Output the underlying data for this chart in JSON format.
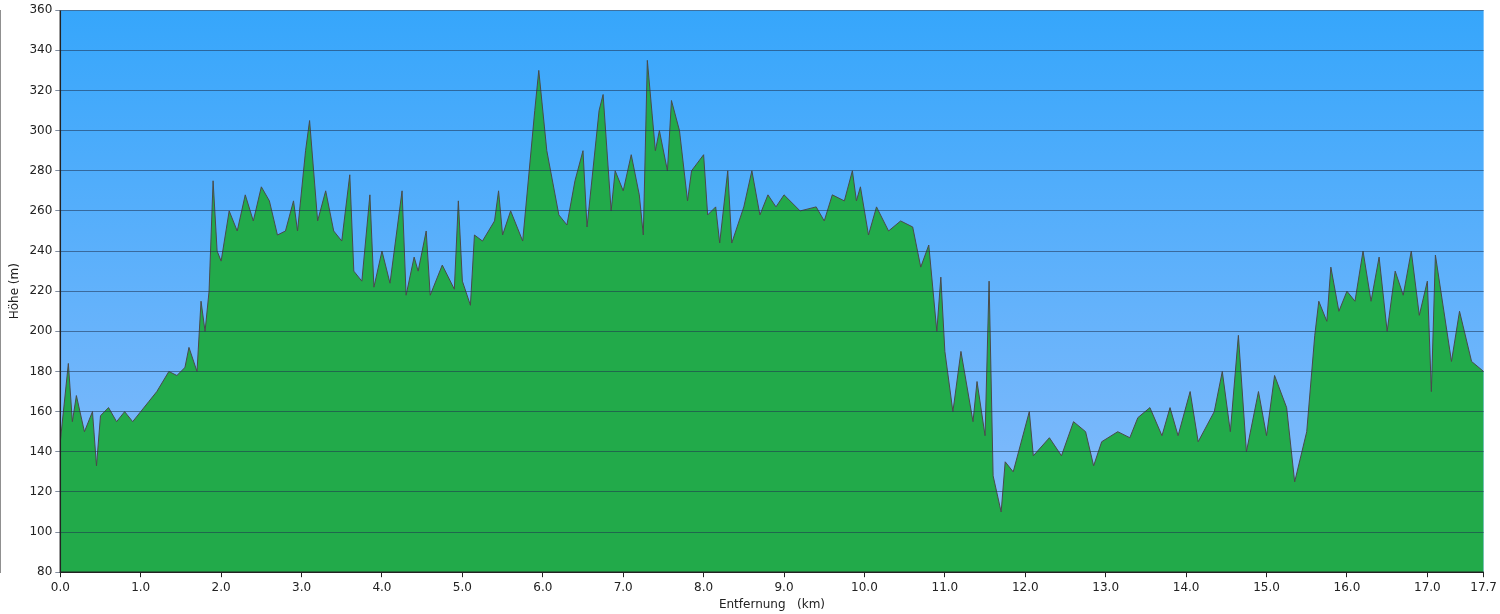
{
  "chart_data": {
    "type": "area",
    "xlabel": "Entfernung   (km)",
    "ylabel": "Höhe (m)",
    "xlim": [
      0,
      17.7
    ],
    "ylim": [
      80,
      360
    ],
    "xticks": [
      {
        "value": 0,
        "label": "0.0"
      },
      {
        "value": 1,
        "label": "1.0"
      },
      {
        "value": 2,
        "label": "2.0"
      },
      {
        "value": 3,
        "label": "3.0"
      },
      {
        "value": 4,
        "label": "4.0"
      },
      {
        "value": 5,
        "label": "5.0"
      },
      {
        "value": 6,
        "label": "6.0"
      },
      {
        "value": 7,
        "label": "7.0"
      },
      {
        "value": 8,
        "label": "8.0"
      },
      {
        "value": 9,
        "label": "9.0"
      },
      {
        "value": 10,
        "label": "10.0"
      },
      {
        "value": 11,
        "label": "11.0"
      },
      {
        "value": 12,
        "label": "12.0"
      },
      {
        "value": 13,
        "label": "13.0"
      },
      {
        "value": 14,
        "label": "14.0"
      },
      {
        "value": 15,
        "label": "15.0"
      },
      {
        "value": 16,
        "label": "16.0"
      },
      {
        "value": 17,
        "label": "17.0"
      },
      17.7
    ],
    "yticks": [
      80,
      100,
      120,
      140,
      160,
      180,
      200,
      220,
      240,
      260,
      280,
      300,
      320,
      340,
      360
    ],
    "grid": "y",
    "legend": false,
    "marker": "none",
    "line_style": "solid",
    "x": [
      0,
      0.1,
      0.15,
      0.2,
      0.3,
      0.4,
      0.45,
      0.5,
      0.6,
      0.7,
      0.8,
      0.9,
      1.0,
      1.1,
      1.2,
      1.35,
      1.45,
      1.55,
      1.6,
      1.7,
      1.75,
      1.8,
      1.85,
      1.9,
      1.95,
      2.0,
      2.1,
      2.2,
      2.3,
      2.4,
      2.5,
      2.6,
      2.7,
      2.8,
      2.9,
      2.95,
      3.05,
      3.1,
      3.2,
      3.3,
      3.4,
      3.5,
      3.6,
      3.65,
      3.75,
      3.85,
      3.9,
      4.0,
      4.1,
      4.25,
      4.3,
      4.4,
      4.45,
      4.55,
      4.6,
      4.75,
      4.9,
      4.95,
      5.0,
      5.1,
      5.15,
      5.25,
      5.4,
      5.45,
      5.5,
      5.6,
      5.75,
      5.9,
      5.95,
      6.05,
      6.2,
      6.3,
      6.4,
      6.5,
      6.55,
      6.7,
      6.75,
      6.85,
      6.9,
      7.0,
      7.1,
      7.2,
      7.25,
      7.3,
      7.4,
      7.45,
      7.55,
      7.6,
      7.7,
      7.8,
      7.85,
      8.0,
      8.05,
      8.15,
      8.2,
      8.3,
      8.35,
      8.5,
      8.6,
      8.7,
      8.8,
      8.9,
      9.0,
      9.2,
      9.4,
      9.5,
      9.6,
      9.75,
      9.85,
      9.9,
      9.95,
      10.05,
      10.15,
      10.3,
      10.45,
      10.6,
      10.7,
      10.8,
      10.9,
      10.95,
      11.0,
      11.1,
      11.2,
      11.35,
      11.4,
      11.5,
      11.55,
      11.6,
      11.7,
      11.75,
      11.85,
      12.05,
      12.1,
      12.3,
      12.45,
      12.6,
      12.75,
      12.85,
      12.95,
      13.15,
      13.3,
      13.4,
      13.55,
      13.7,
      13.8,
      13.9,
      14.05,
      14.15,
      14.35,
      14.45,
      14.55,
      14.65,
      14.75,
      14.9,
      15.0,
      15.1,
      15.25,
      15.35,
      15.5,
      15.6,
      15.65,
      15.75,
      15.8,
      15.9,
      16.0,
      16.1,
      16.2,
      16.3,
      16.4,
      16.5,
      16.6,
      16.7,
      16.8,
      16.9,
      17.0,
      17.05,
      17.1,
      17.3,
      17.4,
      17.55,
      17.7
    ],
    "series": [
      {
        "color": "#22aa4a",
        "values": [
          145,
          184,
          155,
          168,
          150,
          160,
          133,
          158,
          162,
          155,
          160,
          155,
          160,
          165,
          170,
          180,
          178,
          182,
          192,
          180,
          215,
          200,
          220,
          275,
          240,
          235,
          260,
          250,
          268,
          255,
          272,
          265,
          248,
          250,
          265,
          250,
          290,
          305,
          255,
          270,
          250,
          245,
          278,
          230,
          225,
          268,
          222,
          240,
          224,
          270,
          218,
          237,
          230,
          250,
          218,
          233,
          221,
          265,
          225,
          213,
          248,
          245,
          255,
          270,
          248,
          260,
          245,
          310,
          330,
          290,
          258,
          253,
          275,
          290,
          252,
          310,
          318,
          260,
          280,
          270,
          288,
          268,
          248,
          335,
          290,
          300,
          280,
          315,
          300,
          265,
          280,
          288,
          258,
          262,
          244,
          280,
          244,
          262,
          280,
          258,
          268,
          262,
          268,
          260,
          262,
          255,
          268,
          265,
          280,
          265,
          272,
          248,
          262,
          250,
          255,
          252,
          232,
          243,
          200,
          227,
          190,
          160,
          190,
          155,
          175,
          148,
          225,
          128,
          110,
          135,
          130,
          160,
          138,
          147,
          138,
          155,
          150,
          133,
          145,
          150,
          147,
          157,
          162,
          148,
          162,
          148,
          170,
          145,
          160,
          180,
          150,
          198,
          140,
          170,
          148,
          178,
          162,
          125,
          150,
          198,
          215,
          205,
          232,
          210,
          220,
          215,
          240,
          215,
          237,
          200,
          230,
          218,
          240,
          208,
          225,
          170,
          238,
          185,
          210,
          185,
          180
        ]
      }
    ]
  }
}
